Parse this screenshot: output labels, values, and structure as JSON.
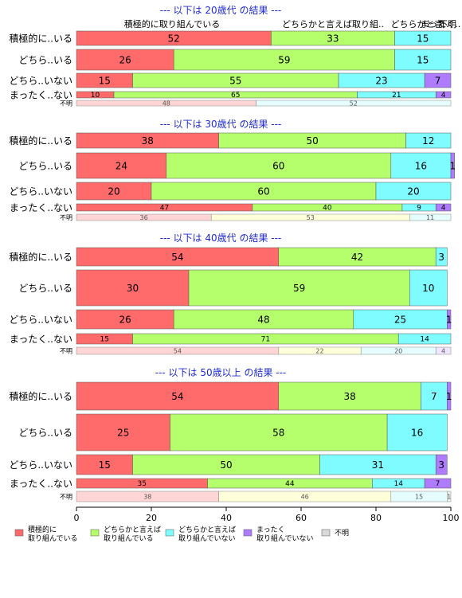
{
  "chart_data": {
    "type": "bar",
    "orientation": "horizontal",
    "stacked": true,
    "percent_stacked": true,
    "xlim": [
      0,
      100
    ],
    "x_ticks": [
      "0",
      "20",
      "40",
      "60",
      "80",
      "100"
    ],
    "legend": [
      {
        "key": "c1",
        "label": [
          "積極的に",
          "取り組んでいる"
        ],
        "color": "#ff6b6b"
      },
      {
        "key": "c2",
        "label": [
          "どちらかと言えば",
          "取り組んでいる"
        ],
        "color": "#b4ff6b"
      },
      {
        "key": "c3",
        "label": [
          "どちらかと言えば",
          "取り組んでいない"
        ],
        "color": "#7ffcff"
      },
      {
        "key": "c4",
        "label": [
          "まったく",
          "取り組んでいない"
        ],
        "color": "#b07cff"
      },
      {
        "key": "c5",
        "label": [
          "不明"
        ],
        "color": "#d9d9d9"
      }
    ],
    "total_row_colors": [
      "#ffd5d5",
      "#ffffd9",
      "#e6fdff",
      "#f0e6ff",
      "#eeeeee"
    ],
    "top_column_labels": [
      "積極的に取り組んでいる",
      "どちらかと言えば取り組..",
      "どちらかと言..",
      "まったく..",
      "不明"
    ],
    "panels": [
      {
        "title": "--- 以下は 20歳代 の結果 ---",
        "rows": [
          {
            "label": "積極的に..いる",
            "values": [
              52,
              33,
              15,
              0,
              0
            ]
          },
          {
            "label": "どちら..いる",
            "values": [
              26,
              59,
              15,
              0,
              0
            ]
          },
          {
            "label": "どちら..いない",
            "values": [
              15,
              55,
              23,
              7,
              0
            ]
          },
          {
            "label": "まったく..ない",
            "values": [
              10,
              65,
              21,
              4,
              0
            ]
          }
        ],
        "total": {
          "label": "不明",
          "values": [
            48,
            0,
            52,
            0,
            0
          ]
        }
      },
      {
        "title": "--- 以下は 30歳代 の結果 ---",
        "rows": [
          {
            "label": "積極的に..いる",
            "values": [
              38,
              50,
              12,
              0,
              0
            ]
          },
          {
            "label": "どちら..いる",
            "values": [
              24,
              60,
              16,
              1,
              0
            ]
          },
          {
            "label": "どちら..いない",
            "values": [
              20,
              60,
              20,
              0,
              0
            ]
          },
          {
            "label": "まったく..ない",
            "values": [
              47,
              40,
              9,
              4,
              0
            ]
          }
        ],
        "total": {
          "label": "不明",
          "values": [
            36,
            53,
            11,
            0,
            0
          ]
        }
      },
      {
        "title": "--- 以下は 40歳代 の結果 ---",
        "rows": [
          {
            "label": "積極的に..いる",
            "values": [
              54,
              42,
              3,
              0,
              0
            ]
          },
          {
            "label": "どちら..いる",
            "values": [
              30,
              59,
              10,
              0,
              0
            ]
          },
          {
            "label": "どちら..いない",
            "values": [
              26,
              48,
              25,
              1,
              0
            ]
          },
          {
            "label": "まったく..ない",
            "values": [
              15,
              71,
              14,
              0,
              0
            ]
          }
        ],
        "total": {
          "label": "不明",
          "values": [
            54,
            22,
            20,
            4,
            0
          ]
        }
      },
      {
        "title": "--- 以下は 50歳以上 の結果 ---",
        "rows": [
          {
            "label": "積極的に..いる",
            "values": [
              54,
              38,
              7,
              1,
              0
            ]
          },
          {
            "label": "どちら..いる",
            "values": [
              25,
              58,
              16,
              0,
              0
            ]
          },
          {
            "label": "どちら..いない",
            "values": [
              15,
              50,
              31,
              3,
              0
            ]
          },
          {
            "label": "まったく..ない",
            "values": [
              35,
              44,
              14,
              7,
              0
            ]
          }
        ],
        "total": {
          "label": "不明",
          "values": [
            38,
            46,
            15,
            0,
            1
          ]
        }
      }
    ]
  }
}
